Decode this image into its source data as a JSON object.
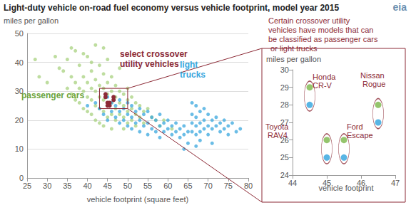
{
  "chart_data": [
    {
      "type": "scatter",
      "title": "Light-duty vehicle on-road fuel economy versus vehicle footprint, model year 2015",
      "y_label": "miles per gallon",
      "x_label": "vehicle footprint (square feet)",
      "logo": "eia",
      "xlim": [
        25,
        80
      ],
      "xticks": [
        25,
        30,
        35,
        40,
        45,
        50,
        55,
        60,
        65,
        70,
        75,
        80
      ],
      "ylim": [
        0,
        50
      ],
      "yticks": [
        0,
        10,
        20,
        30,
        40,
        50
      ],
      "grid": true,
      "zoom_box": {
        "xlim": [
          43,
          50
        ],
        "ylim": [
          24,
          31
        ]
      },
      "series": [
        {
          "name": "passenger cars",
          "color": "#a8d17f",
          "x": [
            27,
            28,
            30,
            32,
            33,
            34,
            35,
            35,
            36,
            36,
            37,
            37,
            37,
            38,
            38,
            38,
            39,
            39,
            39,
            40,
            40,
            40,
            40,
            41,
            41,
            41,
            41,
            42,
            42,
            42,
            42,
            42,
            43,
            43,
            43,
            43,
            43,
            44,
            44,
            44,
            44,
            44,
            45,
            45,
            45,
            45,
            45,
            46,
            46,
            46,
            46,
            46,
            47,
            47,
            47,
            47,
            48,
            48,
            48,
            48,
            49,
            49,
            49,
            49,
            50,
            50,
            50,
            50,
            51,
            51,
            51,
            52,
            52,
            52,
            53,
            53,
            54,
            54,
            55,
            56,
            57,
            58,
            59,
            61,
            36,
            39,
            41,
            44
          ],
          "values": [
            41,
            35,
            33,
            42,
            38,
            37,
            41,
            31,
            35,
            29,
            44,
            33,
            27,
            39,
            31,
            26,
            35,
            30,
            24,
            42,
            33,
            28,
            23,
            37,
            31,
            27,
            22,
            46,
            34,
            30,
            25,
            20,
            39,
            32,
            28,
            24,
            19,
            36,
            31,
            27,
            23,
            18,
            41,
            33,
            29,
            25,
            21,
            35,
            30,
            26,
            22,
            17,
            32,
            28,
            24,
            20,
            38,
            30,
            26,
            22,
            29,
            25,
            21,
            17,
            31,
            27,
            23,
            19,
            28,
            24,
            20,
            26,
            22,
            18,
            25,
            21,
            23,
            19,
            24,
            21,
            20,
            18,
            20,
            17,
            45,
            43,
            40,
            45
          ]
        },
        {
          "name": "light trucks",
          "color": "#3aa7de",
          "x": [
            40,
            42,
            43,
            44,
            45,
            45,
            46,
            46,
            47,
            47,
            48,
            48,
            48,
            49,
            49,
            50,
            50,
            50,
            51,
            51,
            51,
            52,
            52,
            53,
            53,
            53,
            54,
            54,
            55,
            55,
            55,
            56,
            56,
            57,
            57,
            58,
            58,
            58,
            59,
            59,
            60,
            60,
            61,
            61,
            62,
            62,
            63,
            63,
            64,
            64,
            65,
            66,
            66,
            66,
            66,
            67,
            67,
            67,
            67,
            67,
            68,
            68,
            68,
            68,
            69,
            69,
            69,
            70,
            70,
            70,
            71,
            71,
            71,
            72,
            72,
            73,
            73,
            74,
            74,
            75,
            75,
            76,
            77,
            78,
            65,
            64
          ],
          "values": [
            25,
            26,
            24,
            22,
            28,
            20,
            26,
            23,
            25,
            21,
            27,
            23,
            19,
            24,
            20,
            26,
            22,
            18,
            25,
            21,
            17,
            23,
            19,
            24,
            20,
            16,
            22,
            18,
            23,
            19,
            15,
            21,
            17,
            20,
            16,
            22,
            18,
            14,
            19,
            16,
            20,
            17,
            18,
            15,
            19,
            16,
            17,
            14,
            18,
            15,
            16,
            26,
            22,
            19,
            16,
            25,
            21,
            18,
            15,
            11,
            23,
            19,
            16,
            13,
            24,
            20,
            17,
            22,
            18,
            15,
            20,
            17,
            12,
            21,
            18,
            19,
            16,
            20,
            17,
            18,
            15,
            19,
            16,
            17,
            12,
            10
          ]
        },
        {
          "name": "select crossover utility vehicles",
          "color": "#8c2a36",
          "x": [
            44.5,
            44.5,
            45,
            45,
            45.5,
            45.5,
            46.5,
            46.5
          ],
          "values": [
            29,
            28,
            26,
            25,
            26,
            25,
            28,
            27
          ]
        }
      ]
    },
    {
      "type": "scatter",
      "title": "Certain crossover utility vehicles have models that can be classified as passenger cars or light trucks",
      "y_label": "miles per gallon",
      "x_label": "vehicle footprint",
      "xlim": [
        44,
        47
      ],
      "xticks": [
        44,
        45,
        46,
        47
      ],
      "ylim": [
        24,
        30
      ],
      "yticks": [
        24,
        25,
        26,
        27,
        28,
        29,
        30
      ],
      "grid": false,
      "categories": [
        "Honda CR-V",
        "Toyota RAV4",
        "Ford Escape",
        "Nissan Rogue"
      ],
      "series": [
        {
          "name": "passenger cars",
          "color": "#7ab648",
          "x": [
            44.5,
            45,
            45.5,
            46.5
          ],
          "values": [
            29,
            26,
            26,
            28
          ]
        },
        {
          "name": "light trucks",
          "color": "#2ea3dd",
          "x": [
            44.5,
            45,
            45.5,
            46.5
          ],
          "values": [
            28,
            25,
            25,
            27
          ]
        }
      ]
    }
  ]
}
